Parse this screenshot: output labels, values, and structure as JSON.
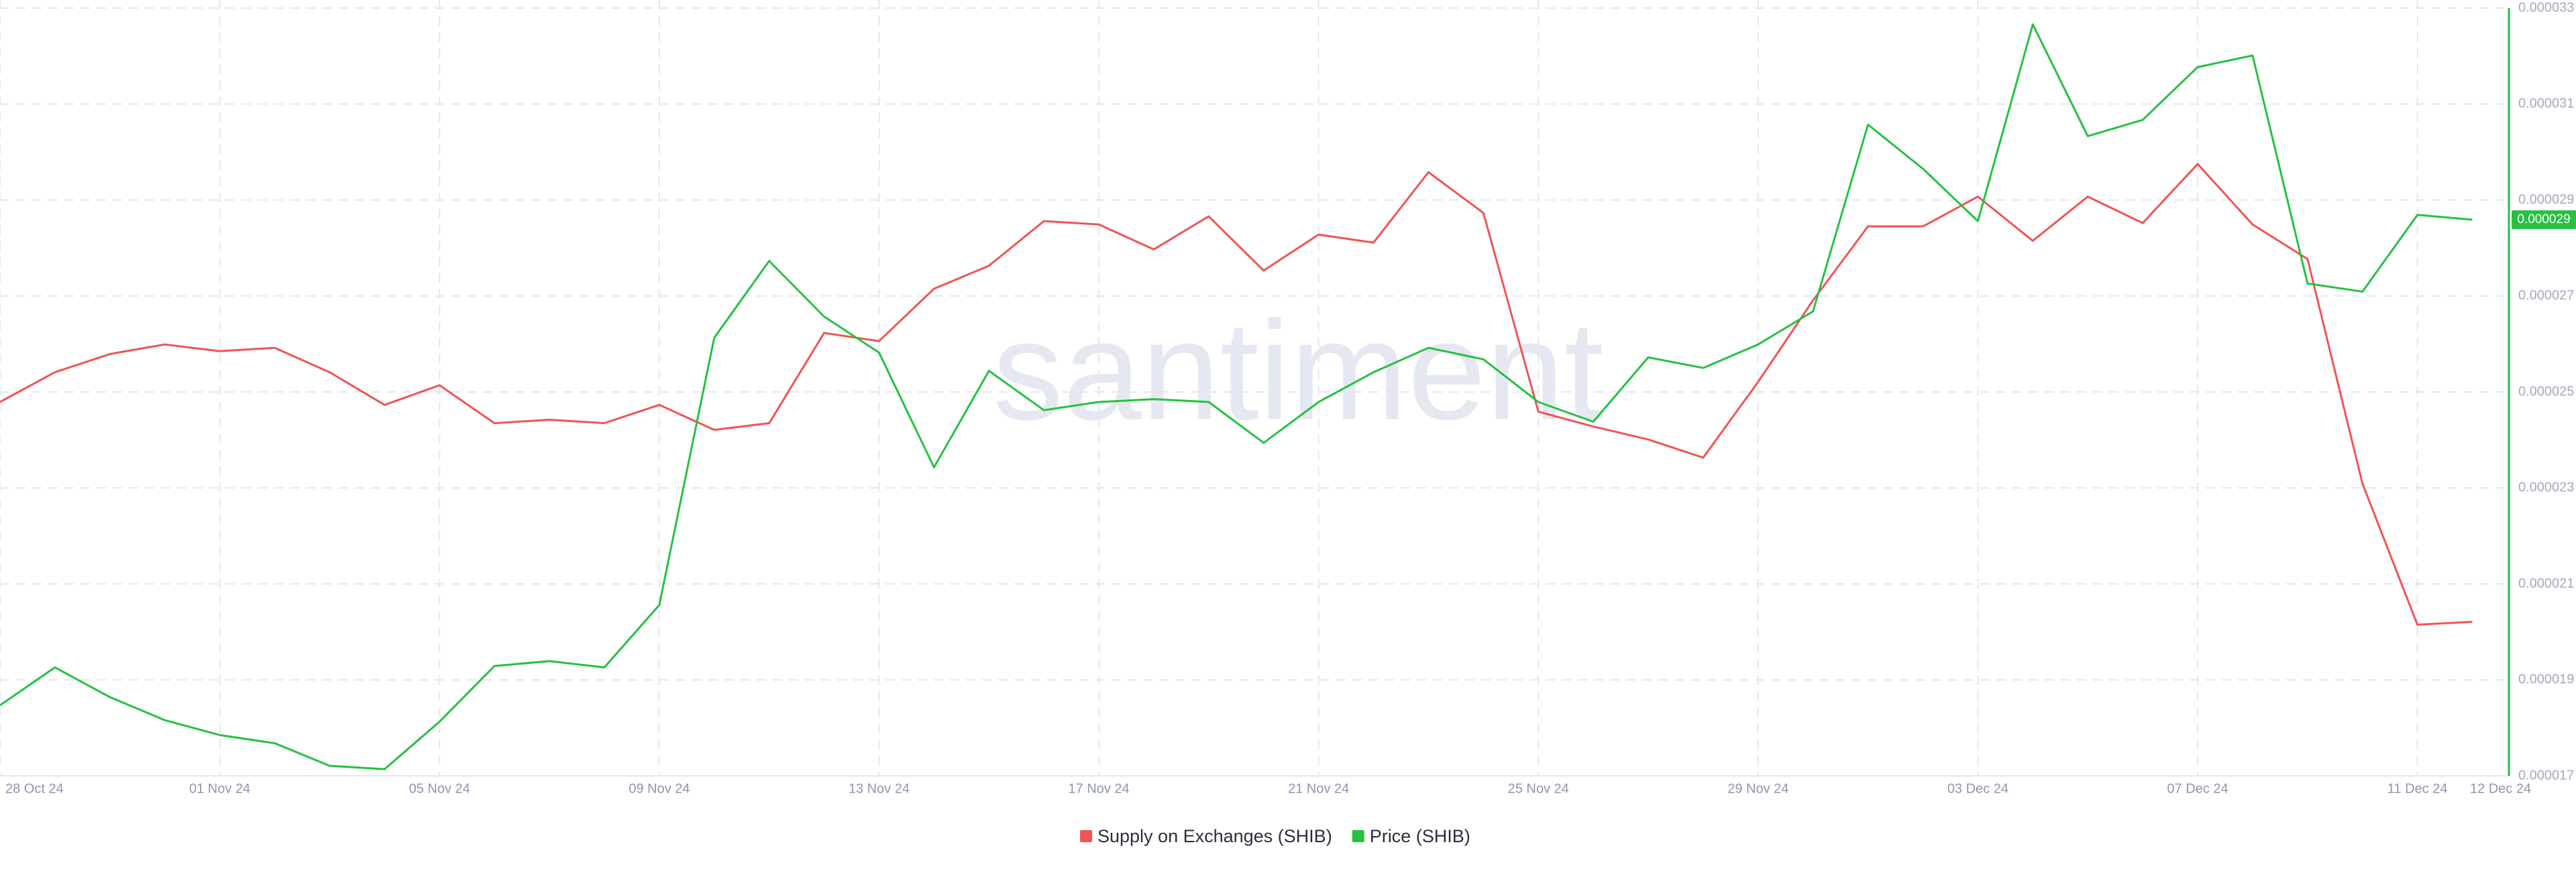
{
  "chart_data": {
    "type": "line",
    "categories": [
      "28 Oct 24",
      null,
      null,
      null,
      "01 Nov 24",
      null,
      null,
      null,
      "05 Nov 24",
      null,
      null,
      null,
      "09 Nov 24",
      null,
      null,
      null,
      "13 Nov 24",
      null,
      null,
      null,
      "17 Nov 24",
      null,
      null,
      null,
      "21 Nov 24",
      null,
      null,
      null,
      "25 Nov 24",
      null,
      null,
      null,
      "29 Nov 24",
      null,
      null,
      null,
      "03 Dec 24",
      null,
      null,
      null,
      "07 Dec 24",
      null,
      null,
      null,
      "11 Dec 24",
      "12 Dec 24"
    ],
    "series": [
      {
        "name": "Supply on Exchanges (SHIB)",
        "color": "#f05454",
        "values": [
          2.479e-05,
          2.541e-05,
          2.579e-05,
          2.599e-05,
          2.585e-05,
          2.592e-05,
          2.541e-05,
          2.473e-05,
          2.514e-05,
          2.435e-05,
          2.442e-05,
          2.435e-05,
          2.473e-05,
          2.421e-05,
          2.435e-05,
          2.623e-05,
          2.606e-05,
          2.715e-05,
          2.763e-05,
          2.856e-05,
          2.849e-05,
          2.797e-05,
          2.866e-05,
          2.753e-05,
          2.828e-05,
          2.811e-05,
          2.958e-05,
          2.873e-05,
          2.459e-05,
          2.428e-05,
          2.401e-05,
          2.363e-05,
          2.521e-05,
          2.691e-05,
          2.845e-05,
          2.845e-05,
          2.907e-05,
          2.815e-05,
          2.907e-05,
          2.852e-05,
          2.975e-05,
          2.849e-05,
          2.777e-05,
          2.309e-05,
          2.015e-05,
          2.021e-05
        ]
      },
      {
        "name": "Price (SHIB)",
        "color": "#26c142",
        "axis": "y2",
        "values": [
          1.847e-05,
          1.926e-05,
          1.864e-05,
          1.816e-05,
          1.785e-05,
          1.768e-05,
          1.721e-05,
          1.714e-05,
          1.813e-05,
          1.929e-05,
          1.939e-05,
          1.926e-05,
          2.056e-05,
          2.613e-05,
          2.773e-05,
          2.657e-05,
          2.582e-05,
          2.343e-05,
          2.544e-05,
          2.462e-05,
          2.479e-05,
          2.485e-05,
          2.479e-05,
          2.394e-05,
          2.479e-05,
          2.541e-05,
          2.592e-05,
          2.568e-05,
          2.479e-05,
          2.438e-05,
          2.572e-05,
          2.55e-05,
          2.599e-05,
          2.668e-05,
          3.057e-05,
          2.965e-05,
          2.856e-05,
          3.266e-05,
          3.033e-05,
          3.067e-05,
          3.177e-05,
          3.201e-05,
          2.726e-05,
          2.709e-05,
          2.869e-05,
          2.859e-05
        ],
        "value_labels": [
          null,
          null,
          null,
          null,
          null,
          null,
          null,
          null,
          null,
          null,
          null,
          null,
          null,
          null,
          null,
          null,
          null,
          null,
          null,
          null,
          null,
          null,
          null,
          null,
          null,
          null,
          null,
          null,
          null,
          null,
          null,
          null,
          null,
          null,
          null,
          null,
          null,
          null,
          null,
          null,
          null,
          null,
          null,
          null,
          null,
          "0.000029"
        ]
      }
    ],
    "y2lim": [
      1.7e-05,
      3.3e-05
    ],
    "y2ticks": [
      1.7e-05,
      1.9e-05,
      2.1e-05,
      2.3e-05,
      2.5e-05,
      2.7e-05,
      2.9e-05,
      3.1e-05,
      3.3e-05
    ],
    "watermark": "santiment",
    "grid": true
  }
}
